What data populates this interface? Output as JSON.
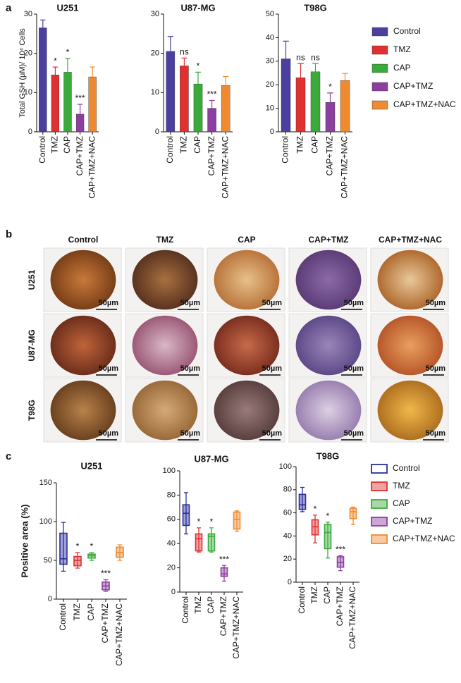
{
  "panels": {
    "a": "a",
    "b": "b",
    "c": "c"
  },
  "micrographs": {
    "columns": [
      "Control",
      "TMZ",
      "CAP",
      "CAP+TMZ",
      "CAP+TMZ+NAC"
    ],
    "rows": [
      {
        "label": "U251",
        "scale_bars": [
          "50µm",
          "50µm",
          "50µm",
          "50µm",
          "50µm"
        ]
      },
      {
        "label": "U87-MG",
        "scale_bars": [
          "50µm",
          "50µm",
          "50µm",
          "50µm",
          "50µm"
        ]
      },
      {
        "label": "T98G",
        "scale_bars": [
          "50µm",
          "50µm",
          "50µm",
          "50µm",
          "50µm"
        ]
      }
    ]
  },
  "chart_data": [
    {
      "type": "bar",
      "title": "U251",
      "y_label": "Total GSH (μM)/ 10⁴ Cells",
      "categories": [
        "Control",
        "TMZ",
        "CAP",
        "CAP+TMZ",
        "CAP+TMZ+NAC"
      ],
      "colors": [
        "#4b3fa0",
        "#e03030",
        "#3aab3a",
        "#8b3f9e",
        "#f08a30"
      ],
      "values": [
        26.5,
        14.5,
        15.2,
        4.5,
        14
      ],
      "errors": [
        2,
        2,
        3.5,
        2.5,
        2.5
      ],
      "annotations": [
        null,
        "*",
        "*",
        "***",
        null
      ],
      "ylim": [
        0,
        30
      ],
      "yticks": [
        0,
        10,
        20,
        30
      ]
    },
    {
      "type": "bar",
      "title": "U87-MG",
      "categories": [
        "Control",
        "TMZ",
        "CAP",
        "CAP+TMZ",
        "CAP+TMZ+NAC"
      ],
      "colors": [
        "#4b3fa0",
        "#e03030",
        "#3aab3a",
        "#8b3f9e",
        "#f08a30"
      ],
      "values": [
        20.5,
        16.8,
        12.2,
        6,
        11.8
      ],
      "errors": [
        3.8,
        2,
        3,
        2,
        2.3
      ],
      "annotations": [
        null,
        "ns",
        "*",
        "***",
        null
      ],
      "ylim": [
        0,
        30
      ],
      "yticks": [
        0,
        10,
        20,
        30
      ]
    },
    {
      "type": "bar",
      "title": "T98G",
      "categories": [
        "Control",
        "TMZ",
        "CAP",
        "CAP+TMZ",
        "CAP+TMZ+NAC"
      ],
      "colors": [
        "#4b3fa0",
        "#e03030",
        "#3aab3a",
        "#8b3f9e",
        "#f08a30"
      ],
      "values": [
        31,
        23,
        25.5,
        12.5,
        21.8
      ],
      "errors": [
        7.5,
        6,
        3.5,
        4,
        3
      ],
      "annotations": [
        null,
        "ns",
        "ns",
        "*",
        null
      ],
      "ylim": [
        0,
        50
      ],
      "yticks": [
        0,
        10,
        20,
        30,
        40,
        50
      ]
    },
    {
      "type": "box",
      "title": "U251",
      "y_label": "Positive area (%)",
      "categories": [
        "Control",
        "TMZ",
        "CAP",
        "CAP+TMZ",
        "CAP+TMZ+NAC"
      ],
      "colors": [
        "#2b2f9e",
        "#e03030",
        "#3aab3a",
        "#8b3f9e",
        "#f08a30"
      ],
      "boxes": [
        {
          "min": 36,
          "q1": 45,
          "median": 52,
          "q3": 85,
          "max": 99
        },
        {
          "min": 40,
          "q1": 43,
          "median": 50,
          "q3": 55,
          "max": 60
        },
        {
          "min": 50,
          "q1": 53,
          "median": 56,
          "q3": 58,
          "max": 60
        },
        {
          "min": 10,
          "q1": 12,
          "median": 17,
          "q3": 22,
          "max": 25
        },
        {
          "min": 50,
          "q1": 54,
          "median": 60,
          "q3": 67,
          "max": 70
        }
      ],
      "annotations": [
        null,
        "*",
        "*",
        "***",
        null
      ],
      "ylim": [
        0,
        150
      ],
      "yticks": [
        0,
        50,
        100,
        150
      ]
    },
    {
      "type": "box",
      "title": "U87-MG",
      "categories": [
        "Control",
        "TMZ",
        "CAP",
        "CAP+TMZ",
        "CAP+TMZ+NAC"
      ],
      "colors": [
        "#2b2f9e",
        "#e03030",
        "#3aab3a",
        "#8b3f9e",
        "#f08a30"
      ],
      "boxes": [
        {
          "min": 48,
          "q1": 55,
          "median": 65,
          "q3": 72,
          "max": 82
        },
        {
          "min": 33,
          "q1": 34,
          "median": 44,
          "q3": 48,
          "max": 53
        },
        {
          "min": 33,
          "q1": 34,
          "median": 46,
          "q3": 48,
          "max": 53
        },
        {
          "min": 9,
          "q1": 13,
          "median": 15,
          "q3": 20,
          "max": 22
        },
        {
          "min": 50,
          "q1": 52,
          "median": 60,
          "q3": 66,
          "max": 67
        }
      ],
      "annotations": [
        null,
        "*",
        "*",
        "***",
        null
      ],
      "ylim": [
        0,
        100
      ],
      "yticks": [
        0,
        20,
        40,
        60,
        80,
        100
      ]
    },
    {
      "type": "box",
      "title": "T98G",
      "categories": [
        "Control",
        "TMZ",
        "CAP",
        "CAP+TMZ",
        "CAP+TMZ+NAC"
      ],
      "colors": [
        "#2b2f9e",
        "#e03030",
        "#3aab3a",
        "#8b3f9e",
        "#f08a30"
      ],
      "boxes": [
        {
          "min": 61,
          "q1": 63,
          "median": 67,
          "q3": 76,
          "max": 82
        },
        {
          "min": 34,
          "q1": 41,
          "median": 48,
          "q3": 54,
          "max": 58
        },
        {
          "min": 21,
          "q1": 29,
          "median": 43,
          "q3": 50,
          "max": 52
        },
        {
          "min": 10,
          "q1": 13,
          "median": 17,
          "q3": 22,
          "max": 23
        },
        {
          "min": 50,
          "q1": 55,
          "median": 61,
          "q3": 64,
          "max": 65
        }
      ],
      "annotations": [
        null,
        "*",
        "*",
        "***",
        null
      ],
      "ylim": [
        0,
        100
      ],
      "yticks": [
        0,
        20,
        40,
        60,
        80,
        100
      ]
    }
  ]
}
